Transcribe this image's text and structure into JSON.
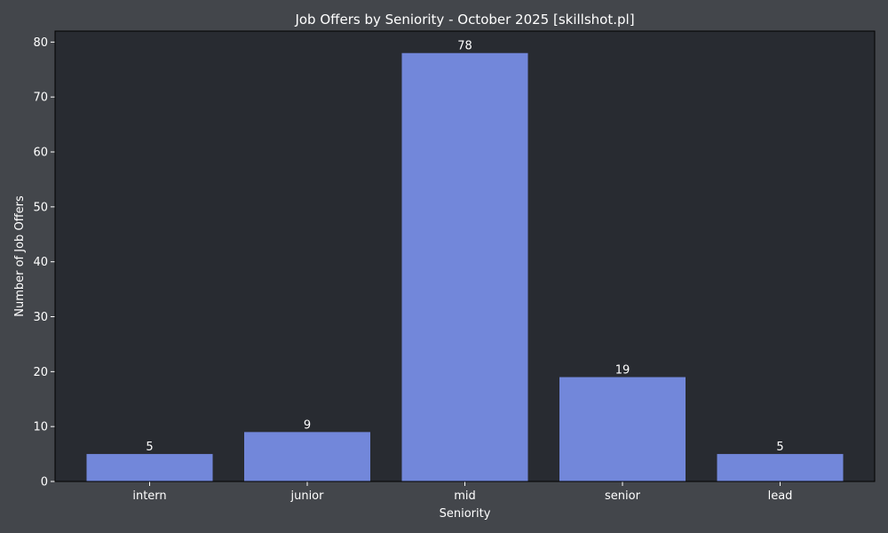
{
  "chart_data": {
    "type": "bar",
    "title": "Job Offers by Seniority - October 2025 [skillshot.pl]",
    "xlabel": "Seniority",
    "ylabel": "Number of Job Offers",
    "categories": [
      "intern",
      "junior",
      "mid",
      "senior",
      "lead"
    ],
    "values": [
      5,
      9,
      78,
      19,
      5
    ],
    "data_labels": [
      "5",
      "9",
      "78",
      "19",
      "5"
    ],
    "ylim": [
      0,
      82
    ],
    "yticks": [
      0,
      10,
      20,
      30,
      40,
      50,
      60,
      70,
      80
    ],
    "grid": false,
    "legend": "none",
    "colors": {
      "background": "#43464b",
      "plot_background": "#282b31",
      "bar": "#7287da",
      "text": "#ffffff"
    }
  }
}
